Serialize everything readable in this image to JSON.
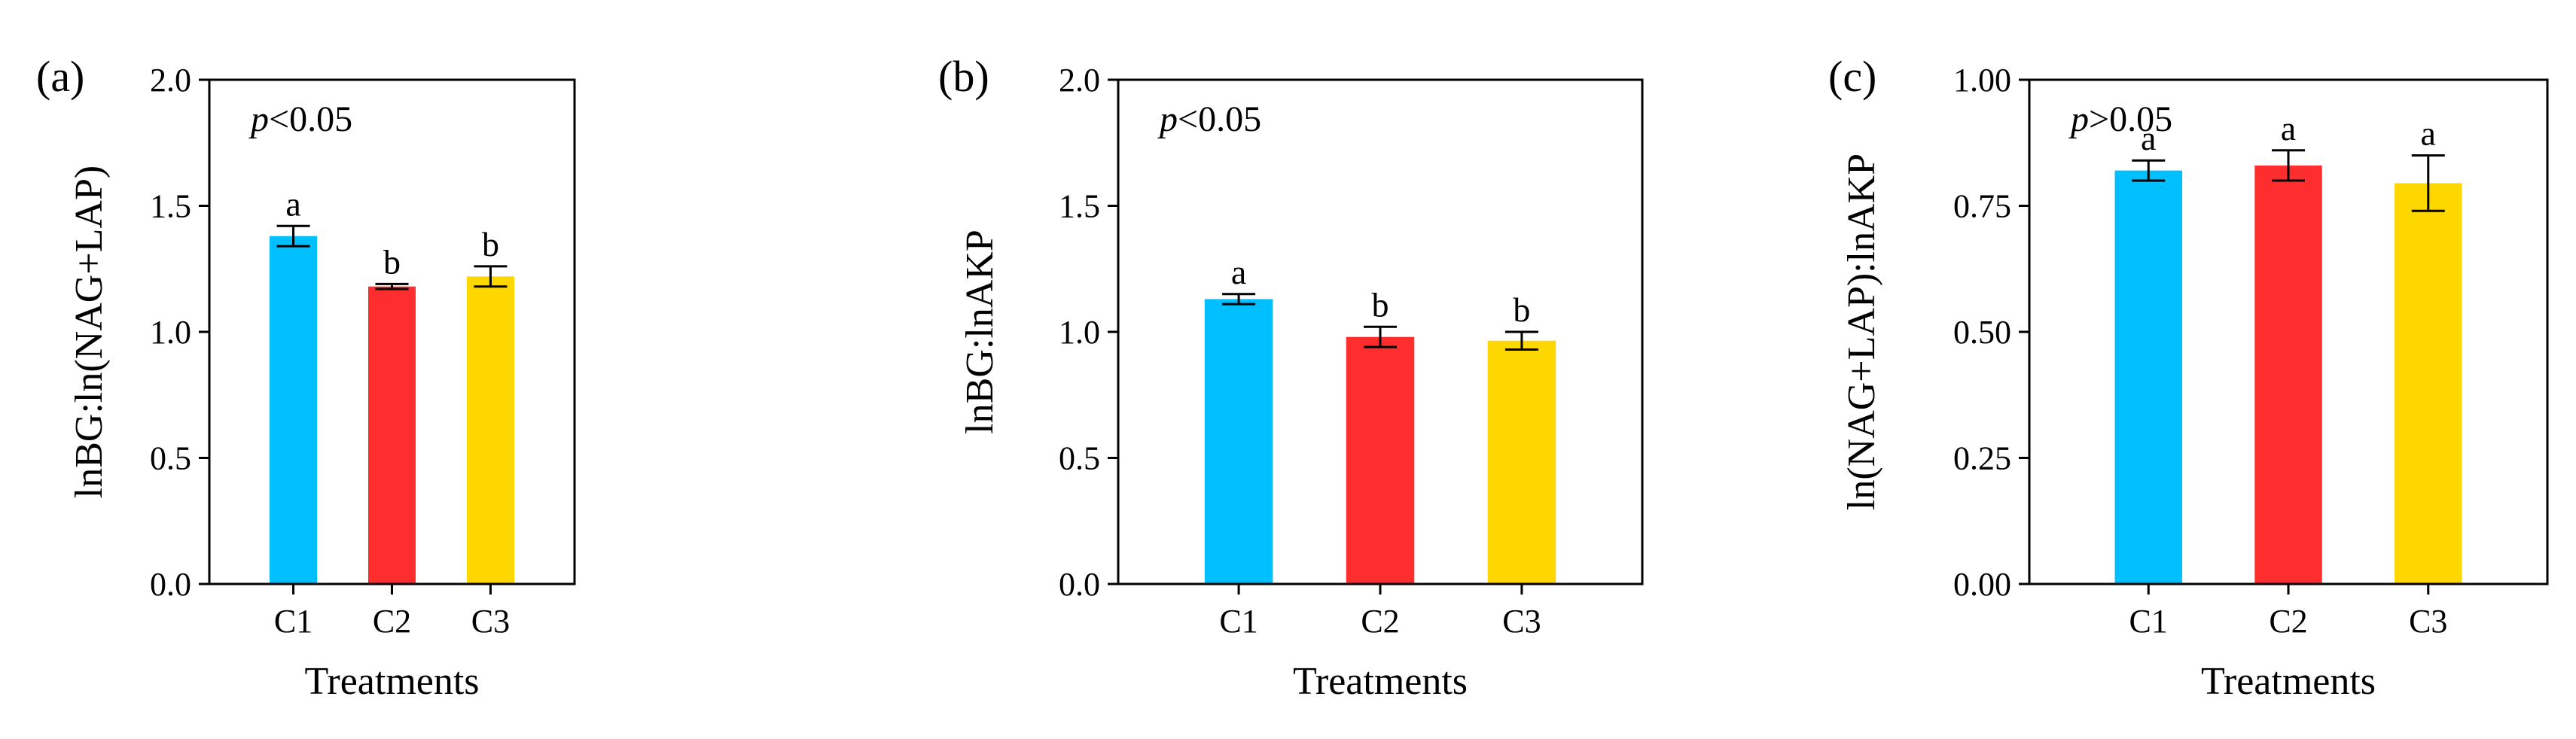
{
  "figure": {
    "panels": [
      "a",
      "b",
      "c"
    ]
  },
  "chart_data": [
    {
      "type": "bar",
      "panel_label": "(a)",
      "title": "",
      "xlabel": "Treatments",
      "ylabel": "lnBG:ln(NAG+LAP)",
      "categories": [
        "C1",
        "C2",
        "C3"
      ],
      "values": [
        1.38,
        1.18,
        1.22
      ],
      "errors": [
        0.04,
        0.01,
        0.04
      ],
      "letters": [
        "a",
        "b",
        "b"
      ],
      "colors": [
        "#00BFFF",
        "#FF2E2E",
        "#FFD700"
      ],
      "ylim": [
        0,
        2.0
      ],
      "yticks": [
        0.0,
        0.5,
        1.0,
        1.5,
        2.0
      ],
      "ytick_labels": [
        "0.0",
        "0.5",
        "1.0",
        "1.5",
        "2.0"
      ],
      "annotation": {
        "p_symbol": "p",
        "p_rest": "<0.05"
      },
      "grid": false
    },
    {
      "type": "bar",
      "panel_label": "(b)",
      "title": "",
      "xlabel": "Treatments",
      "ylabel": "lnBG:lnAKP",
      "categories": [
        "C1",
        "C2",
        "C3"
      ],
      "values": [
        1.13,
        0.98,
        0.965
      ],
      "errors": [
        0.02,
        0.04,
        0.035
      ],
      "letters": [
        "a",
        "b",
        "b"
      ],
      "colors": [
        "#00BFFF",
        "#FF2E2E",
        "#FFD700"
      ],
      "ylim": [
        0,
        2.0
      ],
      "yticks": [
        0.0,
        0.5,
        1.0,
        1.5,
        2.0
      ],
      "ytick_labels": [
        "0.0",
        "0.5",
        "1.0",
        "1.5",
        "2.0"
      ],
      "annotation": {
        "p_symbol": "p",
        "p_rest": "<0.05"
      },
      "grid": false
    },
    {
      "type": "bar",
      "panel_label": "(c)",
      "title": "",
      "xlabel": "Treatments",
      "ylabel": "ln(NAG+LAP):lnAKP",
      "categories": [
        "C1",
        "C2",
        "C3"
      ],
      "values": [
        0.82,
        0.83,
        0.795
      ],
      "errors": [
        0.02,
        0.03,
        0.055
      ],
      "letters": [
        "a",
        "a",
        "a"
      ],
      "colors": [
        "#00BFFF",
        "#FF2E2E",
        "#FFD700"
      ],
      "ylim": [
        0,
        1.0
      ],
      "yticks": [
        0.0,
        0.25,
        0.5,
        0.75,
        1.0
      ],
      "ytick_labels": [
        "0.00",
        "0.25",
        "0.50",
        "0.75",
        "1.00"
      ],
      "annotation": {
        "p_symbol": "p",
        "p_rest": ">0.05"
      },
      "grid": false
    }
  ]
}
